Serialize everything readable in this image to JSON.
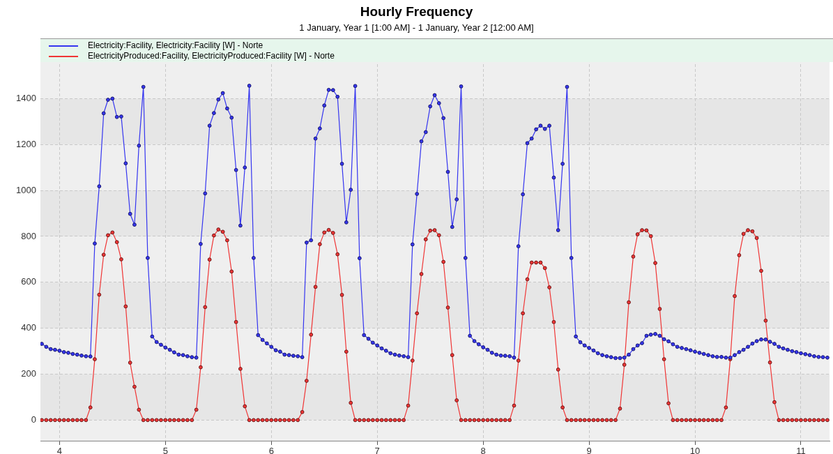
{
  "chart_data": {
    "type": "line",
    "title": "Hourly Frequency",
    "subtitle": "1 January, Year 1 [1:00 AM] - 1 January, Year 2 [12:00 AM]",
    "x": [
      3.833,
      3.875,
      3.917,
      3.958,
      4,
      4.042,
      4.083,
      4.125,
      4.167,
      4.208,
      4.25,
      4.292,
      4.333,
      4.375,
      4.417,
      4.458,
      4.5,
      4.542,
      4.583,
      4.625,
      4.667,
      4.708,
      4.75,
      4.792,
      4.833,
      4.875,
      4.917,
      4.958,
      5,
      5.042,
      5.083,
      5.125,
      5.167,
      5.208,
      5.25,
      5.292,
      5.333,
      5.375,
      5.417,
      5.458,
      5.5,
      5.542,
      5.583,
      5.625,
      5.667,
      5.708,
      5.75,
      5.792,
      5.833,
      5.875,
      5.917,
      5.958,
      6,
      6.042,
      6.083,
      6.125,
      6.167,
      6.208,
      6.25,
      6.292,
      6.333,
      6.375,
      6.417,
      6.458,
      6.5,
      6.542,
      6.583,
      6.625,
      6.667,
      6.708,
      6.75,
      6.792,
      6.833,
      6.875,
      6.917,
      6.958,
      7,
      7.042,
      7.083,
      7.125,
      7.167,
      7.208,
      7.25,
      7.292,
      7.333,
      7.375,
      7.417,
      7.458,
      7.5,
      7.542,
      7.583,
      7.625,
      7.667,
      7.708,
      7.75,
      7.792,
      7.833,
      7.875,
      7.917,
      7.958,
      8,
      8.042,
      8.083,
      8.125,
      8.167,
      8.208,
      8.25,
      8.292,
      8.333,
      8.375,
      8.417,
      8.458,
      8.5,
      8.542,
      8.583,
      8.625,
      8.667,
      8.708,
      8.75,
      8.792,
      8.833,
      8.875,
      8.917,
      8.958,
      9,
      9.042,
      9.083,
      9.125,
      9.167,
      9.208,
      9.25,
      9.292,
      9.333,
      9.375,
      9.417,
      9.458,
      9.5,
      9.542,
      9.583,
      9.625,
      9.667,
      9.708,
      9.75,
      9.792,
      9.833,
      9.875,
      9.917,
      9.958,
      10,
      10.042,
      10.083,
      10.125,
      10.167,
      10.208,
      10.25,
      10.292,
      10.333,
      10.375,
      10.417,
      10.458,
      10.5,
      10.542,
      10.583,
      10.625,
      10.667,
      10.708,
      10.75,
      10.792,
      10.833,
      10.875,
      10.917,
      10.958,
      11,
      11.042,
      11.083,
      11.125,
      11.167,
      11.208,
      11.25
    ],
    "series": [
      {
        "name": "Electricity:Facility, Electricity:Facility [W] - Norte",
        "color": "#3535f0",
        "values": [
          332,
          319,
          309,
          306,
          302,
          296,
          293,
          288,
          285,
          281,
          278,
          277,
          769,
          1018,
          1336,
          1395,
          1400,
          1320,
          1322,
          1118,
          898,
          851,
          1195,
          1451,
          706,
          364,
          340,
          328,
          316,
          306,
          295,
          285,
          283,
          278,
          274,
          272,
          767,
          987,
          1282,
          1337,
          1396,
          1424,
          1357,
          1317,
          1089,
          847,
          1100,
          1456,
          706,
          370,
          349,
          334,
          319,
          304,
          298,
          285,
          283,
          280,
          278,
          274,
          773,
          783,
          1226,
          1270,
          1370,
          1438,
          1437,
          1408,
          1116,
          861,
          1003,
          1455,
          705,
          370,
          354,
          337,
          325,
          312,
          302,
          291,
          285,
          281,
          278,
          274,
          765,
          985,
          1214,
          1254,
          1366,
          1415,
          1380,
          1315,
          1081,
          841,
          961,
          1453,
          706,
          367,
          344,
          330,
          317,
          306,
          293,
          285,
          281,
          280,
          278,
          272,
          757,
          983,
          1206,
          1226,
          1266,
          1282,
          1268,
          1282,
          1056,
          827,
          1116,
          1451,
          706,
          364,
          339,
          325,
          314,
          303,
          291,
          283,
          278,
          274,
          270,
          270,
          272,
          285,
          309,
          325,
          335,
          367,
          372,
          375,
          367,
          352,
          343,
          330,
          319,
          314,
          309,
          304,
          298,
          293,
          288,
          283,
          278,
          275,
          275,
          272,
          272,
          283,
          296,
          306,
          319,
          333,
          344,
          351,
          351,
          341,
          332,
          319,
          312,
          306,
          300,
          296,
          291,
          287,
          283,
          278,
          275,
          274,
          272
        ]
      },
      {
        "name": "ElectricityProduced:Facility, ElectricityProduced:Facility [W] - Norte",
        "color": "#f03535",
        "values": [
          0,
          0,
          0,
          0,
          0,
          0,
          0,
          0,
          0,
          0,
          0,
          55,
          265,
          546,
          720,
          805,
          817,
          775,
          700,
          495,
          250,
          145,
          45,
          0,
          0,
          0,
          0,
          0,
          0,
          0,
          0,
          0,
          0,
          0,
          0,
          45,
          230,
          492,
          699,
          804,
          830,
          820,
          783,
          647,
          427,
          223,
          60,
          0,
          0,
          0,
          0,
          0,
          0,
          0,
          0,
          0,
          0,
          0,
          0,
          35,
          171,
          372,
          580,
          766,
          817,
          828,
          815,
          722,
          545,
          298,
          75,
          0,
          0,
          0,
          0,
          0,
          0,
          0,
          0,
          0,
          0,
          0,
          0,
          63,
          259,
          465,
          636,
          787,
          825,
          827,
          805,
          689,
          490,
          283,
          86,
          0,
          0,
          0,
          0,
          0,
          0,
          0,
          0,
          0,
          0,
          0,
          0,
          63,
          259,
          465,
          613,
          686,
          686,
          686,
          662,
          578,
          427,
          220,
          55,
          0,
          0,
          0,
          0,
          0,
          0,
          0,
          0,
          0,
          0,
          0,
          0,
          50,
          241,
          513,
          712,
          809,
          827,
          826,
          801,
          684,
          484,
          265,
          73,
          0,
          0,
          0,
          0,
          0,
          0,
          0,
          0,
          0,
          0,
          0,
          0,
          55,
          265,
          540,
          718,
          811,
          827,
          822,
          793,
          650,
          433,
          251,
          78,
          0,
          0,
          0,
          0,
          0,
          0,
          0,
          0,
          0,
          0,
          0,
          0
        ]
      }
    ],
    "xlim": [
      3.82,
      11.27
    ],
    "xticks": [
      4,
      5,
      6,
      7,
      8,
      9,
      10,
      11
    ],
    "ylim": [
      -90,
      1550
    ],
    "yticks": [
      0,
      200,
      400,
      600,
      800,
      1000,
      1200,
      1400
    ],
    "grid": true,
    "legend": "top left",
    "marker": "circle",
    "line_style": "solid"
  }
}
